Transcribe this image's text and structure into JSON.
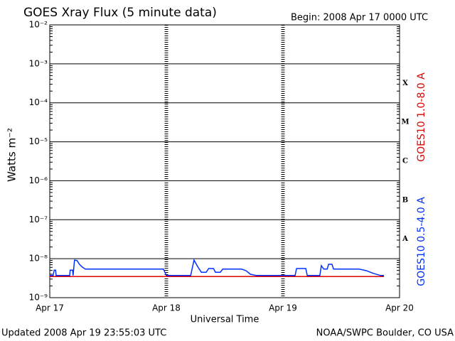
{
  "chart_data": {
    "type": "line",
    "title": "GOES Xray Flux (5 minute data)",
    "subtitle": "Begin:  2008 Apr 17 0000 UTC",
    "ylabel": "Watts m⁻²",
    "xlabel": "Universal Time",
    "footer_left": "Updated 2008 Apr 19 23:55:03 UTC",
    "footer_right": "NOAA/SWPC Boulder, CO USA",
    "log_scale": true,
    "grid": true,
    "xlim": [
      0,
      72
    ],
    "xticks": [
      {
        "value": 0,
        "label": "Apr 17"
      },
      {
        "value": 24,
        "label": "Apr 18"
      },
      {
        "value": 48,
        "label": "Apr 19"
      },
      {
        "value": 72,
        "label": "Apr 20"
      }
    ],
    "ylim": [
      1e-09,
      0.01
    ],
    "yticks": [
      {
        "value": 1e-09,
        "label": "10⁻⁹"
      },
      {
        "value": 1e-08,
        "label": "10⁻⁸"
      },
      {
        "value": 1e-07,
        "label": "10⁻⁷"
      },
      {
        "value": 1e-06,
        "label": "10⁻⁶"
      },
      {
        "value": 1e-05,
        "label": "10⁻⁵"
      },
      {
        "value": 0.0001,
        "label": "10⁻⁴"
      },
      {
        "value": 0.001,
        "label": "10⁻³"
      },
      {
        "value": 0.01,
        "label": "10⁻²"
      }
    ],
    "class_labels": [
      {
        "value": 1e-08,
        "label": "A"
      },
      {
        "value": 1e-07,
        "label": "B"
      },
      {
        "value": 1e-06,
        "label": "C"
      },
      {
        "value": 1e-05,
        "label": "M"
      },
      {
        "value": 0.0001,
        "label": "X"
      }
    ],
    "series": [
      {
        "name": "GOES10 1.0-8.0 A",
        "color": "#e00000",
        "x": [
          0,
          68.8
        ],
        "values": [
          3.5e-09,
          3.5e-09
        ]
      },
      {
        "name": "GOES10 0.5-4.0 A",
        "color": "#0030ff",
        "x": [
          0,
          0.7,
          0.9,
          1.2,
          1.3,
          4.1,
          4.2,
          4.7,
          4.8,
          5.1,
          5.6,
          6.1,
          6.7,
          7.3,
          23.4,
          24.0,
          29.0,
          29.7,
          30.5,
          31.2,
          32.2,
          32.7,
          33.7,
          34.1,
          35.1,
          35.6,
          39.5,
          40.4,
          41.3,
          42.5,
          47.1,
          50.5,
          50.8,
          52.7,
          53.0,
          55.6,
          55.9,
          56.4,
          57.1,
          57.4,
          58.1,
          58.4,
          63.7,
          65.2,
          66.6,
          68.1,
          68.8
        ],
        "values": [
          3.7e-09,
          3.7e-09,
          5.1e-09,
          5.1e-09,
          3.7e-09,
          3.7e-09,
          5.1e-09,
          5.1e-09,
          3.7e-09,
          9.2e-09,
          9e-09,
          7.2e-09,
          6.1e-09,
          5.4e-09,
          5.4e-09,
          3.7e-09,
          3.7e-09,
          9.2e-09,
          6.1e-09,
          4.5e-09,
          4.5e-09,
          5.6e-09,
          5.6e-09,
          4.5e-09,
          4.5e-09,
          5.4e-09,
          5.4e-09,
          4.9e-09,
          4e-09,
          3.7e-09,
          3.7e-09,
          3.7e-09,
          5.6e-09,
          5.6e-09,
          3.7e-09,
          3.7e-09,
          6.6e-09,
          5.4e-09,
          5.4e-09,
          7.2e-09,
          7.2e-09,
          5.4e-09,
          5.4e-09,
          4.9e-09,
          4.2e-09,
          3.7e-09,
          3.7e-09
        ]
      }
    ]
  }
}
